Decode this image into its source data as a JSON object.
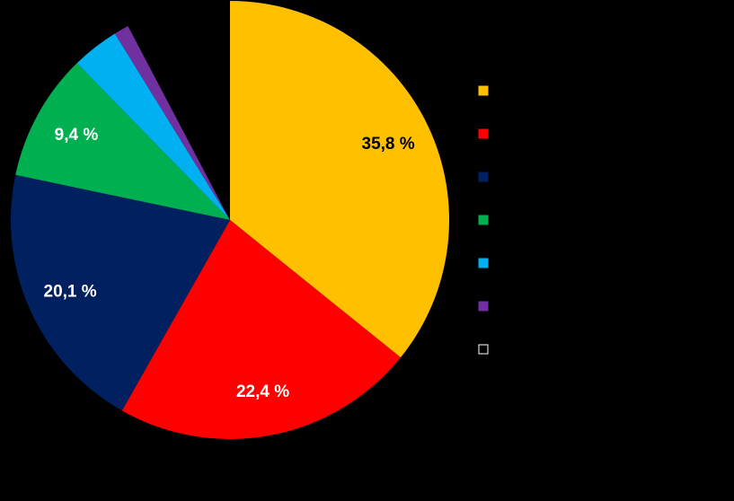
{
  "chart_data": {
    "type": "pie",
    "categories": [
      null,
      null,
      null,
      null,
      null,
      null,
      null
    ],
    "values": [
      35.8,
      22.4,
      20.1,
      9.4,
      3.5,
      1.1,
      7.7
    ],
    "value_labels": [
      "35,8 %",
      "22,4 %",
      "20,1 %",
      "9,4 %",
      null,
      null,
      null
    ],
    "colors": [
      "#ffc000",
      "#ff0000",
      "#002060",
      "#00b050",
      "#00b0f0",
      "#7030a0",
      "#000000"
    ],
    "legend": "right"
  }
}
